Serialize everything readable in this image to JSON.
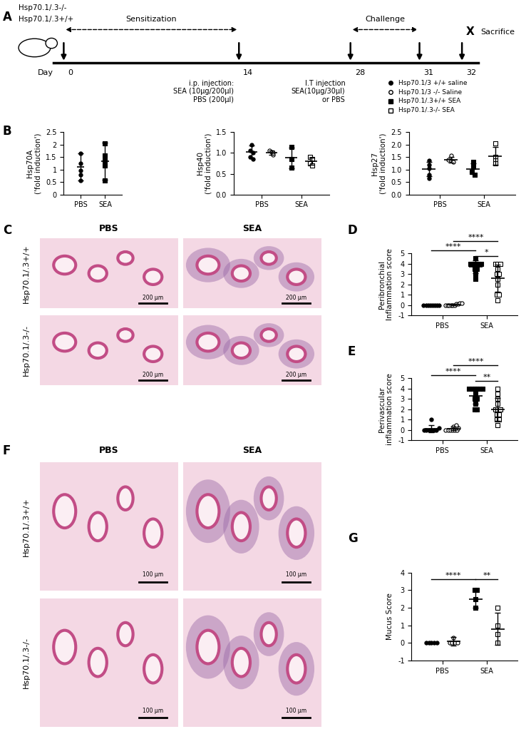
{
  "panel_labels": [
    "A",
    "B",
    "C",
    "D",
    "E",
    "F",
    "G"
  ],
  "diagram": {
    "mouse_labels": [
      "Hsp70.1/.3-/-",
      "Hsp70.1/.3+/+"
    ],
    "days_label": "Day",
    "days": [
      0,
      14,
      28,
      31,
      32
    ],
    "phases": [
      {
        "label": "Sensitization",
        "from": 0,
        "to": 14
      },
      {
        "label": "Challenge",
        "from": 28,
        "to": 31
      }
    ],
    "end_mark": "X",
    "end_label": "Sacrifice",
    "end_day": 32,
    "notes": [
      {
        "day": 14,
        "lines": [
          "i.p. injection:",
          "SEA (10µg/200µl)",
          "PBS (200µl)"
        ]
      },
      {
        "day": 28,
        "lines": [
          "I.T injection",
          "SEA(10µg/30µl)",
          "or PBS"
        ]
      }
    ]
  },
  "key": [
    {
      "name": "Hsp70.1/3 +/+ saline",
      "marker": "circle",
      "color": "black"
    },
    {
      "name": "Hsp70.1/3 -/- Saline",
      "marker": "circle",
      "color": "white"
    },
    {
      "name": "Hsp70.1/.3+/+ SEA",
      "marker": "square",
      "color": "black"
    },
    {
      "name": "Hsp70.1/.3-/- SEA",
      "marker": "square",
      "color": "white"
    }
  ],
  "images": [
    {
      "columns": [
        "PBS",
        "SEA"
      ],
      "rows": [
        "Hsp70.1/.3+/+",
        "Hsp70.1/.3-/-"
      ],
      "scale_bar": "200 µm"
    },
    {
      "columns": [
        "PBS",
        "SEA"
      ],
      "rows": [
        "Hsp70.1/.3+/+",
        "Hsp70.1/.3-/-"
      ],
      "scale_bar": "100 µm"
    }
  ],
  "chart_data": [
    {
      "type": "scatter",
      "ylabel": "Hsp70A\n('fold induction')",
      "categories": [
        "PBS",
        "SEA"
      ],
      "ylim": [
        0,
        2.5
      ],
      "yticks": [
        0,
        0.5,
        1,
        1.5,
        2,
        2.5
      ],
      "groups": [
        {
          "name": "Hsp70.1/3 +/+ saline",
          "category": "PBS",
          "values": [
            1.65,
            1.25,
            0.95,
            0.8,
            0.55
          ],
          "mean": 1.1,
          "sd": 0.55
        },
        {
          "name": "Hsp70.1/.3+/+ SEA",
          "category": "SEA",
          "values": [
            2.05,
            1.55,
            1.35,
            1.15,
            0.55
          ],
          "mean": 1.33,
          "sd": 0.75
        }
      ],
      "comparisons": []
    },
    {
      "type": "scatter",
      "ylabel": "Hsp40\n('fold induction')",
      "categories": [
        "PBS",
        "SEA"
      ],
      "ylim": [
        0,
        1.5
      ],
      "yticks": [
        {
          "value": 0,
          "label": "0.0"
        },
        0.5,
        {
          "value": 1,
          "label": "1.0"
        },
        1.5
      ],
      "groups": [
        {
          "name": "Hsp70.1/3 +/+ saline",
          "category": "PBS",
          "values": [
            1.2,
            1.05,
            1.0,
            0.9,
            0.85
          ],
          "mean": 1.02,
          "sd": 0.15
        },
        {
          "name": "Hsp70.1/3 -/- Saline",
          "category": "PBS",
          "values": [
            1.05,
            1.02,
            1.0,
            0.95
          ],
          "mean": 1.0,
          "sd": 0.05
        },
        {
          "name": "Hsp70.1/.3+/+ SEA",
          "category": "SEA",
          "values": [
            1.15,
            0.85,
            0.65
          ],
          "mean": 0.88,
          "sd": 0.25
        },
        {
          "name": "Hsp70.1/.3-/- SEA",
          "category": "SEA",
          "values": [
            0.9,
            0.85,
            0.75,
            0.7
          ],
          "mean": 0.8,
          "sd": 0.09
        }
      ],
      "comparisons": []
    },
    {
      "type": "scatter",
      "ylabel": "Hsp27\n('fold induction')",
      "categories": [
        "PBS",
        "SEA"
      ],
      "ylim": [
        0,
        2.5
      ],
      "yticks": [
        {
          "value": 0,
          "label": "0.0"
        },
        0.5,
        {
          "value": 1,
          "label": "1.0"
        },
        1.5,
        {
          "value": 2,
          "label": "2.0"
        },
        2.5
      ],
      "groups": [
        {
          "name": "Hsp70.1/3 +/+ saline",
          "category": "PBS",
          "values": [
            1.35,
            1.2,
            1.05,
            0.8,
            0.65
          ],
          "mean": 1.01,
          "sd": 0.29
        },
        {
          "name": "Hsp70.1/3 -/- Saline",
          "category": "PBS",
          "values": [
            1.55,
            1.4,
            1.35,
            1.3
          ],
          "mean": 1.4,
          "sd": 0.11
        },
        {
          "name": "Hsp70.1/.3+/+ SEA",
          "category": "SEA",
          "values": [
            1.3,
            1.1,
            0.9,
            0.8
          ],
          "mean": 1.03,
          "sd": 0.22
        },
        {
          "name": "Hsp70.1/.3-/- SEA",
          "category": "SEA",
          "values": [
            2.05,
            1.5,
            1.35,
            1.25
          ],
          "mean": 1.54,
          "sd": 0.36
        }
      ],
      "comparisons": []
    },
    {
      "type": "scatter",
      "ylabel": "Peribronchial\nInflammation score",
      "categories": [
        "PBS",
        "SEA"
      ],
      "ylim": [
        -1,
        5
      ],
      "yticks": [
        -1,
        0,
        1,
        2,
        3,
        4,
        5
      ],
      "groups": [
        {
          "name": "Hsp70.1/3 +/+ saline",
          "category": "PBS",
          "values": [
            0,
            0,
            0,
            0,
            0,
            0,
            0,
            0
          ],
          "mean": 0,
          "sd": 0
        },
        {
          "name": "Hsp70.1/3 -/- Saline",
          "category": "PBS",
          "values": [
            0,
            0,
            0,
            0,
            0,
            0,
            0.1,
            0.1,
            0.2,
            0.2
          ],
          "mean": 0.06,
          "sd": 0.08
        },
        {
          "name": "Hsp70.1/.3+/+ SEA",
          "category": "SEA",
          "values": [
            4.5,
            4,
            4,
            4,
            4,
            4,
            3.5,
            3.5,
            3,
            2.5
          ],
          "mean": 3.7,
          "sd": 0.6
        },
        {
          "name": "Hsp70.1/.3-/- SEA",
          "category": "SEA",
          "values": [
            4,
            4,
            4,
            3.5,
            3,
            3,
            2.5,
            2,
            1,
            1,
            0.5
          ],
          "mean": 2.6,
          "sd": 1.3
        }
      ],
      "comparisons": [
        {
          "from": "Hsp70.1/3 +/+ saline",
          "to": "Hsp70.1/.3+/+ SEA",
          "label": "****",
          "y": 5.3
        },
        {
          "from": "Hsp70.1/3 -/- Saline",
          "to": "Hsp70.1/.3-/- SEA",
          "label": "****",
          "y": 6.2
        },
        {
          "from": "Hsp70.1/.3+/+ SEA",
          "to": "Hsp70.1/.3-/- SEA",
          "label": "*",
          "y": 4.7
        }
      ]
    },
    {
      "type": "scatter",
      "ylabel": "Perivascular\ninflammation score",
      "categories": [
        "PBS",
        "SEA"
      ],
      "ylim": [
        -1,
        5
      ],
      "yticks": [
        -1,
        0,
        1,
        2,
        3,
        4,
        5
      ],
      "groups": [
        {
          "name": "Hsp70.1/3 +/+ saline",
          "category": "PBS",
          "values": [
            0,
            0,
            0,
            0,
            0,
            0,
            0.2,
            1
          ],
          "mean": 0.15,
          "sd": 0.35
        },
        {
          "name": "Hsp70.1/3 -/- Saline",
          "category": "PBS",
          "values": [
            0,
            0,
            0,
            0,
            0,
            0,
            0.2,
            0.2,
            0.3,
            0.3,
            0.5
          ],
          "mean": 0.14,
          "sd": 0.17
        },
        {
          "name": "Hsp70.1/.3+/+ SEA",
          "category": "SEA",
          "values": [
            4,
            4,
            4,
            4,
            4,
            4,
            3.5,
            3,
            3,
            2.5,
            2,
            2
          ],
          "mean": 3.3,
          "sd": 0.8
        },
        {
          "name": "Hsp70.1/.3-/- SEA",
          "category": "SEA",
          "values": [
            4,
            3.5,
            3,
            2.5,
            2,
            2,
            2,
            1.5,
            1.5,
            1,
            1,
            0.5
          ],
          "mean": 2.0,
          "sd": 1.1
        }
      ],
      "comparisons": [
        {
          "from": "Hsp70.1/3 +/+ saline",
          "to": "Hsp70.1/.3+/+ SEA",
          "label": "****",
          "y": 5.3
        },
        {
          "from": "Hsp70.1/3 -/- Saline",
          "to": "Hsp70.1/.3-/- SEA",
          "label": "****",
          "y": 6.2
        },
        {
          "from": "Hsp70.1/.3+/+ SEA",
          "to": "Hsp70.1/.3-/- SEA",
          "label": "**",
          "y": 4.7
        }
      ]
    },
    {
      "type": "scatter",
      "ylabel": "Mucus Score",
      "categories": [
        "PBS",
        "SEA"
      ],
      "ylim": [
        -1,
        4
      ],
      "yticks": [
        -1,
        0,
        1,
        2,
        3,
        4
      ],
      "groups": [
        {
          "name": "Hsp70.1/3 +/+ saline",
          "category": "PBS",
          "values": [
            0,
            0,
            0,
            0,
            0
          ],
          "mean": 0,
          "sd": 0
        },
        {
          "name": "Hsp70.1/3 -/- Saline",
          "category": "PBS",
          "values": [
            0,
            0,
            0,
            0,
            0.3
          ],
          "mean": 0.1,
          "sd": 0.25
        },
        {
          "name": "Hsp70.1/.3+/+ SEA",
          "category": "SEA",
          "values": [
            3,
            3,
            2.5,
            2
          ],
          "mean": 2.5,
          "sd": 0.5
        },
        {
          "name": "Hsp70.1/.3-/- SEA",
          "category": "SEA",
          "values": [
            2,
            1,
            0.5,
            0
          ],
          "mean": 0.8,
          "sd": 0.9
        }
      ],
      "comparisons": [
        {
          "from": "Hsp70.1/3 +/+ saline",
          "to": "Hsp70.1/.3+/+ SEA",
          "label": "****",
          "y": 3.6
        },
        {
          "from": "Hsp70.1/.3+/+ SEA",
          "to": "Hsp70.1/.3-/- SEA",
          "label": "**",
          "y": 3.6
        }
      ]
    }
  ]
}
